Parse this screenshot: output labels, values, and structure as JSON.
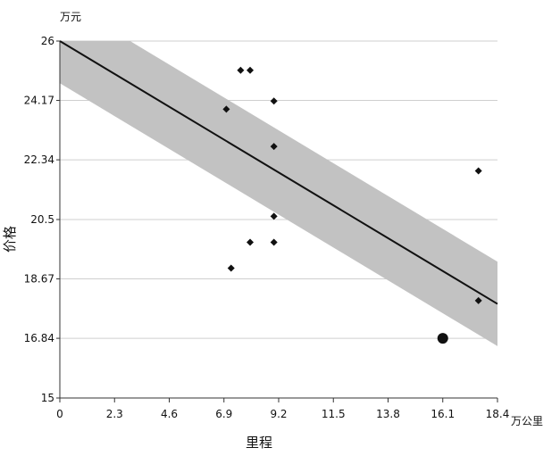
{
  "chart_data": {
    "type": "scatter",
    "title": "",
    "xlabel": "里程",
    "ylabel": "价格",
    "x_unit": "万公里",
    "y_unit": "万元",
    "xlim": [
      0,
      18.4
    ],
    "ylim": [
      15,
      26
    ],
    "x_ticks": [
      "0",
      "2.3",
      "4.6",
      "6.9",
      "9.2",
      "11.5",
      "13.8",
      "16.1",
      "18.4"
    ],
    "y_ticks": [
      "15",
      "16.84",
      "18.67",
      "20.5",
      "22.34",
      "24.17",
      "26"
    ],
    "grid": "horizontal",
    "legend": "none",
    "series": [
      {
        "kind": "points",
        "marker": "diamond",
        "points": [
          {
            "x": 7.6,
            "y": 25.1
          },
          {
            "x": 8.0,
            "y": 25.1
          },
          {
            "x": 7.0,
            "y": 23.9
          },
          {
            "x": 9.0,
            "y": 24.15
          },
          {
            "x": 9.0,
            "y": 22.75
          },
          {
            "x": 17.6,
            "y": 22.0
          },
          {
            "x": 9.0,
            "y": 20.6
          },
          {
            "x": 8.0,
            "y": 19.8
          },
          {
            "x": 9.0,
            "y": 19.8
          },
          {
            "x": 7.2,
            "y": 19.0
          },
          {
            "x": 17.6,
            "y": 18.0
          }
        ]
      },
      {
        "kind": "points",
        "marker": "large-dot",
        "points": [
          {
            "x": 16.1,
            "y": 16.84
          }
        ]
      },
      {
        "kind": "regression-line",
        "points": [
          {
            "x": 0,
            "y": 26.0
          },
          {
            "x": 18.4,
            "y": 17.9
          }
        ]
      },
      {
        "kind": "confidence-band",
        "band_halfwidth": 1.3,
        "points": [
          {
            "x": 0,
            "y": 26.0
          },
          {
            "x": 18.4,
            "y": 17.9
          }
        ]
      }
    ],
    "colors": {
      "band": "#c2c2c2",
      "line": "#111111",
      "marker": "#111111",
      "grid": "#cfcfcf",
      "axis": "#333333"
    }
  }
}
